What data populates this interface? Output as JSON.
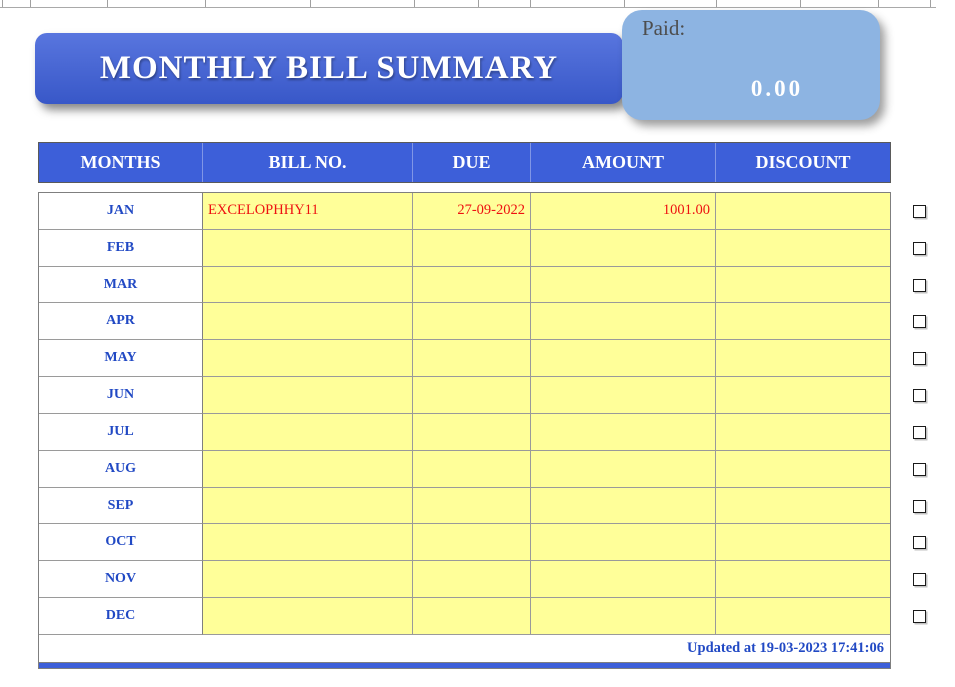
{
  "banner": {
    "title": "MONTHLY BILL SUMMARY"
  },
  "paid": {
    "label": "Paid:",
    "value": "0.00"
  },
  "table": {
    "headers": [
      "MONTHS",
      "BILL NO.",
      "DUE",
      "AMOUNT",
      "DISCOUNT"
    ],
    "rows": [
      {
        "month": "JAN",
        "bill_no": "EXCELOPHHY11",
        "due": "27-09-2022",
        "amount": "1001.00",
        "discount": "",
        "checked": false
      },
      {
        "month": "FEB",
        "bill_no": "",
        "due": "",
        "amount": "",
        "discount": "",
        "checked": false
      },
      {
        "month": "MAR",
        "bill_no": "",
        "due": "",
        "amount": "",
        "discount": "",
        "checked": false
      },
      {
        "month": "APR",
        "bill_no": "",
        "due": "",
        "amount": "",
        "discount": "",
        "checked": false
      },
      {
        "month": "MAY",
        "bill_no": "",
        "due": "",
        "amount": "",
        "discount": "",
        "checked": false
      },
      {
        "month": "JUN",
        "bill_no": "",
        "due": "",
        "amount": "",
        "discount": "",
        "checked": false
      },
      {
        "month": "JUL",
        "bill_no": "",
        "due": "",
        "amount": "",
        "discount": "",
        "checked": false
      },
      {
        "month": "AUG",
        "bill_no": "",
        "due": "",
        "amount": "",
        "discount": "",
        "checked": false
      },
      {
        "month": "SEP",
        "bill_no": "",
        "due": "",
        "amount": "",
        "discount": "",
        "checked": false
      },
      {
        "month": "OCT",
        "bill_no": "",
        "due": "",
        "amount": "",
        "discount": "",
        "checked": false
      },
      {
        "month": "NOV",
        "bill_no": "",
        "due": "",
        "amount": "",
        "discount": "",
        "checked": false
      },
      {
        "month": "DEC",
        "bill_no": "",
        "due": "",
        "amount": "",
        "discount": "",
        "checked": false
      }
    ],
    "footer_note": "Updated at 19-03-2023 17:41:06"
  },
  "colors": {
    "banner_blue": "#3d5fd9",
    "light_blue": "#8db4e2",
    "cell_yellow": "#ffff99",
    "month_blue": "#2149c4",
    "value_red": "#ee1111"
  }
}
